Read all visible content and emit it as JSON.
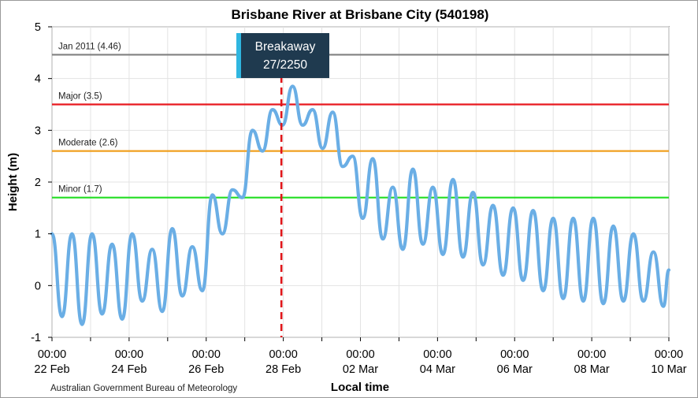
{
  "chart_data": {
    "type": "line",
    "title": "Brisbane River at Brisbane City (540198)",
    "xlabel": "Local time",
    "ylabel": "Height (m)",
    "credit": "Australian Government Bureau of Meteorology",
    "ylim": [
      -1,
      5
    ],
    "yticks": [
      -1,
      0,
      1,
      2,
      3,
      4,
      5
    ],
    "xlim_days": [
      0,
      16
    ],
    "xticks": [
      {
        "time": "00:00",
        "date": "22 Feb",
        "day": 0
      },
      {
        "time": "00:00",
        "date": "24 Feb",
        "day": 2
      },
      {
        "time": "00:00",
        "date": "26 Feb",
        "day": 4
      },
      {
        "time": "00:00",
        "date": "28 Feb",
        "day": 6
      },
      {
        "time": "00:00",
        "date": "02 Mar",
        "day": 8
      },
      {
        "time": "00:00",
        "date": "04 Mar",
        "day": 10
      },
      {
        "time": "00:00",
        "date": "06 Mar",
        "day": 12
      },
      {
        "time": "00:00",
        "date": "08 Mar",
        "day": 14
      },
      {
        "time": "00:00",
        "date": "10 Mar",
        "day": 16
      }
    ],
    "grid": true,
    "series": [
      {
        "color": "#6aaee5",
        "x_days": [
          0,
          0.26,
          0.52,
          0.78,
          1.04,
          1.3,
          1.56,
          1.82,
          2.08,
          2.34,
          2.6,
          2.86,
          3.12,
          3.38,
          3.64,
          3.9,
          4.16,
          4.42,
          4.68,
          4.94,
          5.2,
          5.46,
          5.72,
          5.98,
          6.24,
          6.5,
          6.76,
          7.02,
          7.28,
          7.54,
          7.8,
          8.06,
          8.32,
          8.58,
          8.84,
          9.1,
          9.36,
          9.62,
          9.88,
          10.14,
          10.4,
          10.66,
          10.92,
          11.18,
          11.44,
          11.7,
          11.96,
          12.22,
          12.48,
          12.74,
          13.0,
          13.26,
          13.52,
          13.78,
          14.04,
          14.3,
          14.56,
          14.82,
          15.08,
          15.34,
          15.6,
          15.86,
          16.0
        ],
        "y": [
          1.0,
          -0.6,
          1.0,
          -0.75,
          1.0,
          -0.55,
          0.8,
          -0.65,
          1.0,
          -0.3,
          0.7,
          -0.5,
          1.1,
          -0.2,
          0.75,
          -0.1,
          1.75,
          1.0,
          1.85,
          1.7,
          3.0,
          2.6,
          3.4,
          3.1,
          3.85,
          3.1,
          3.4,
          2.65,
          3.35,
          2.3,
          2.5,
          1.3,
          2.45,
          0.9,
          1.9,
          0.7,
          2.25,
          0.8,
          1.9,
          0.6,
          2.05,
          0.55,
          1.8,
          0.4,
          1.55,
          0.2,
          1.5,
          0.1,
          1.45,
          -0.1,
          1.3,
          -0.25,
          1.3,
          -0.3,
          1.3,
          -0.35,
          1.15,
          -0.3,
          1.0,
          -0.3,
          0.65,
          -0.4,
          0.3
        ]
      }
    ],
    "thresholds": [
      {
        "label": "Jan 2011 (4.46)",
        "value": 4.46,
        "color": "#808080"
      },
      {
        "label": "Major (3.5)",
        "value": 3.5,
        "color": "#e8181e"
      },
      {
        "label": "Moderate (2.6)",
        "value": 2.6,
        "color": "#f0a020"
      },
      {
        "label": "Minor (1.7)",
        "value": 1.7,
        "color": "#22dd22"
      }
    ],
    "marker": {
      "label_line1": "Breakaway",
      "label_line2": "27/2250",
      "day": 5.95,
      "line_color": "#e0161a",
      "box_color": "#1f3a4f",
      "accent_color": "#2fb6e0"
    }
  }
}
